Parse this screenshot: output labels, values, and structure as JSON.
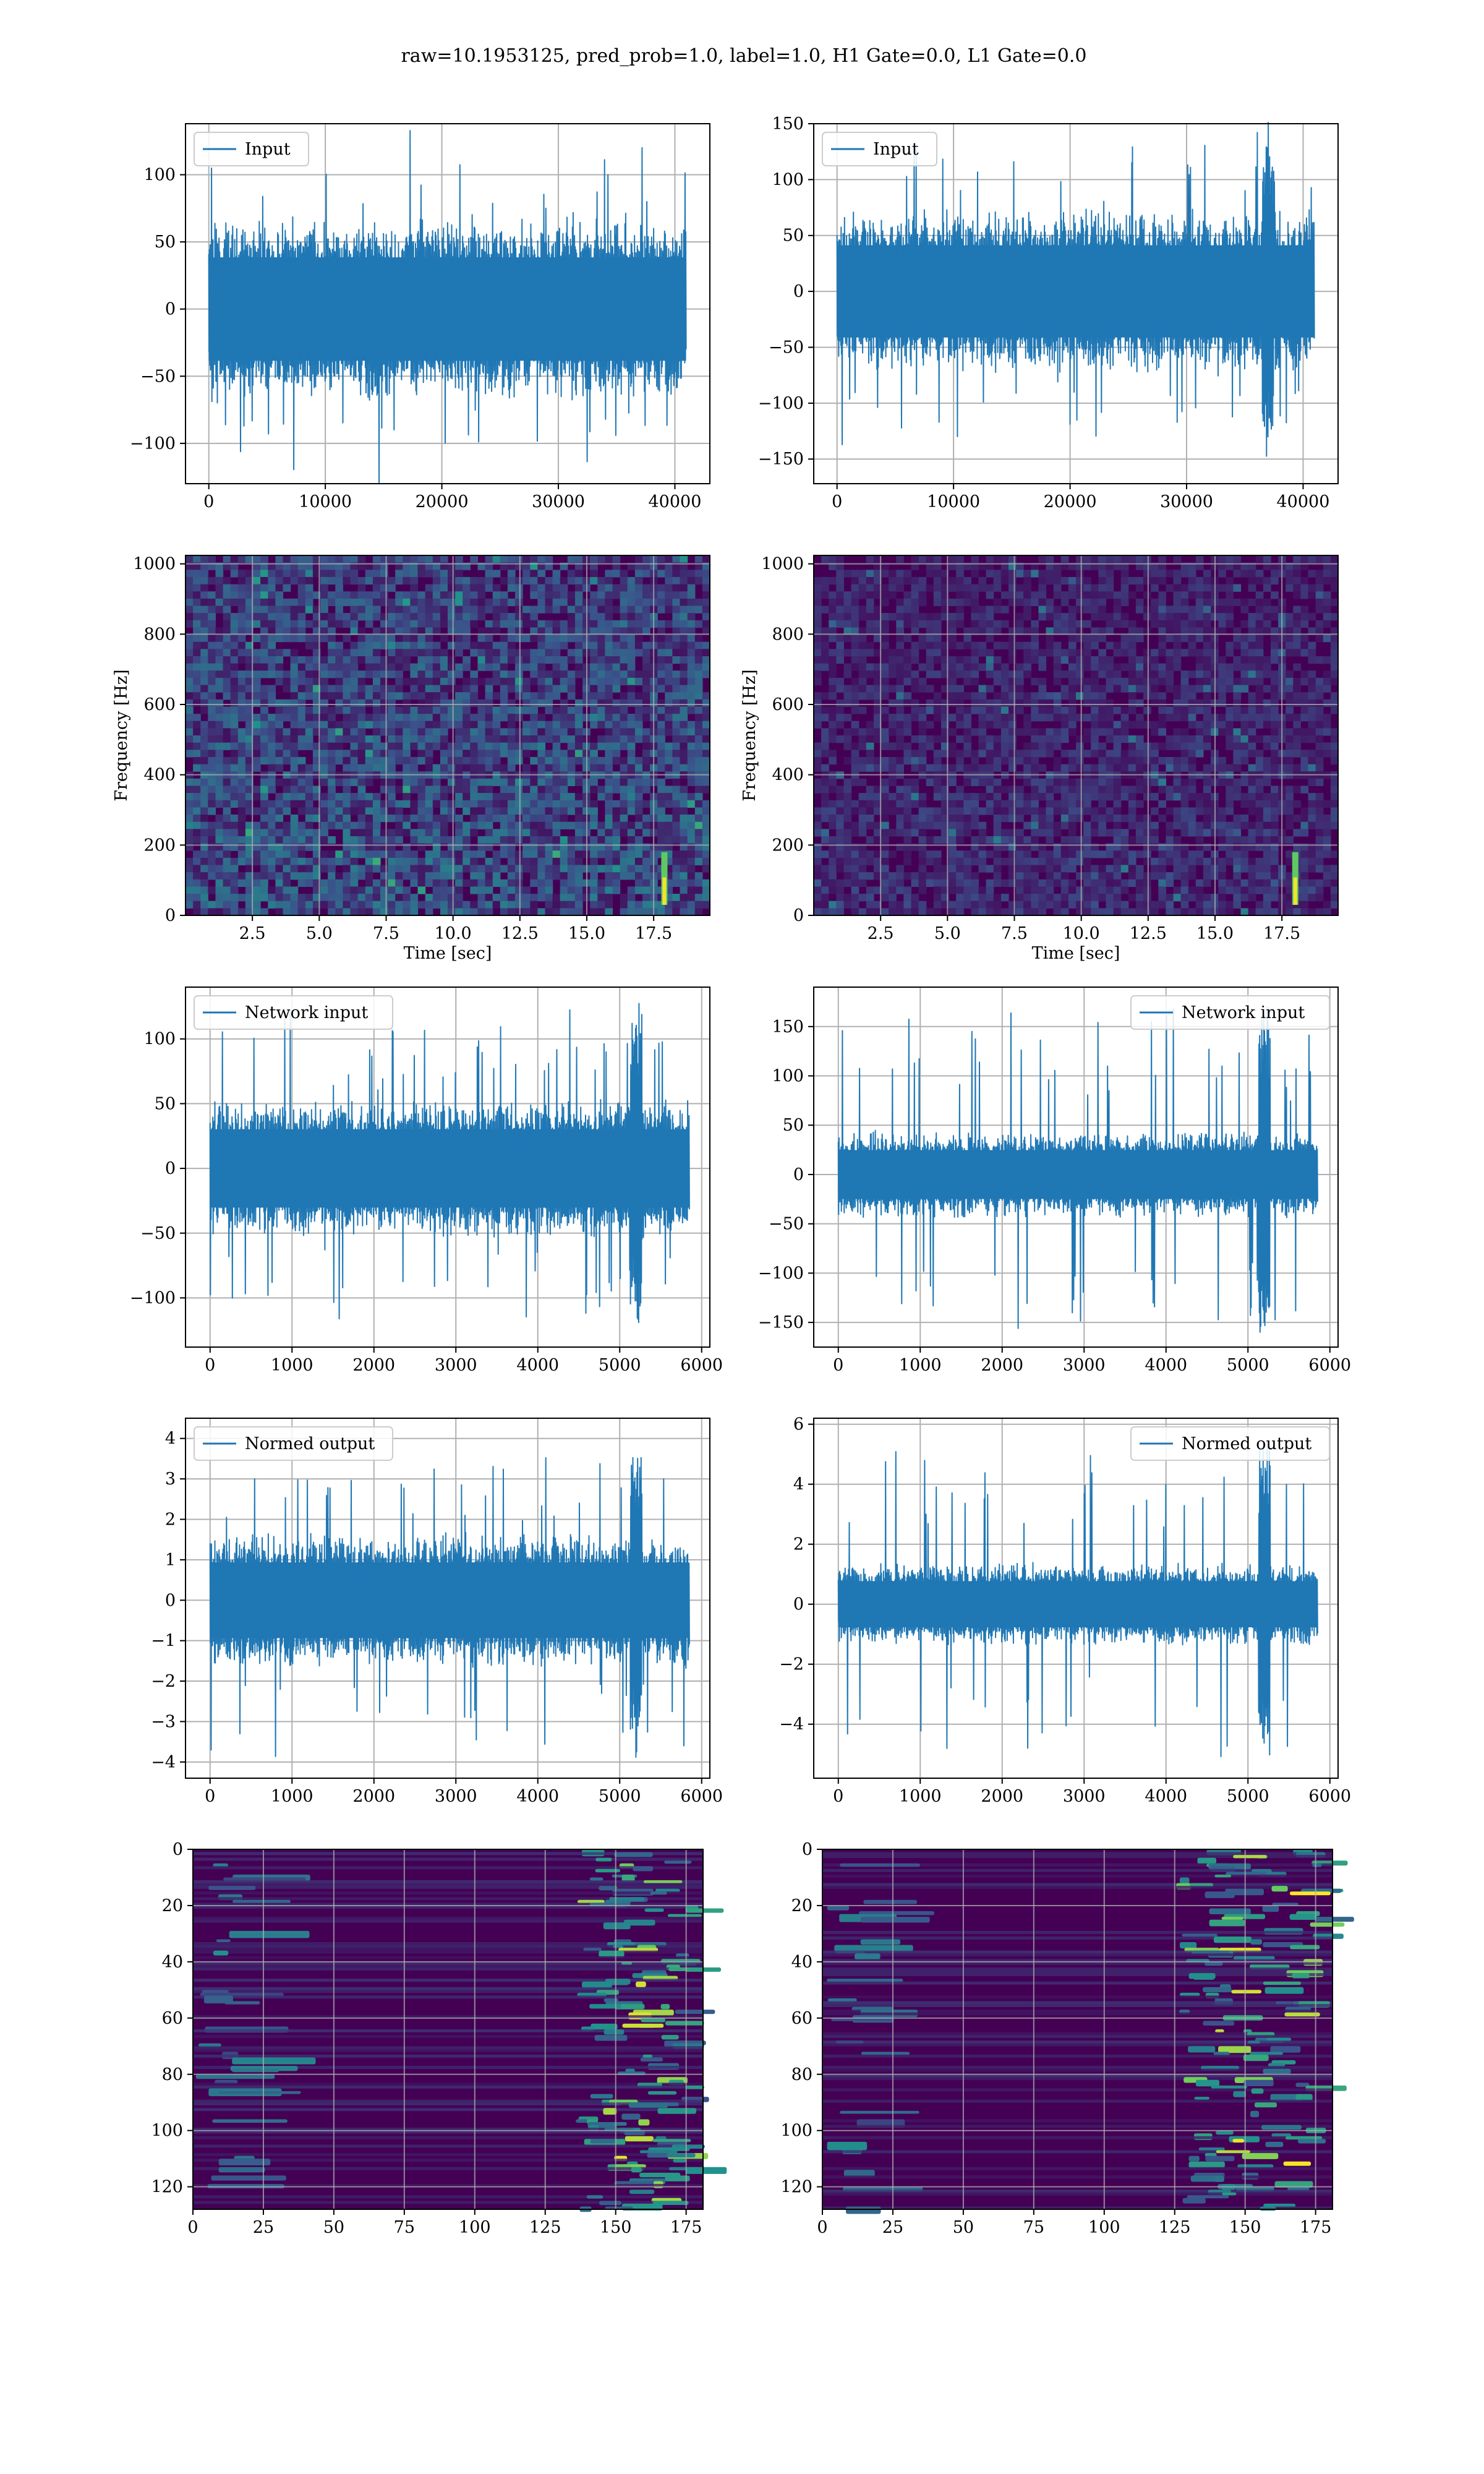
{
  "figure": {
    "title": "raw=10.1953125, pred_prob=1.0, label=1.0, H1 Gate=0.0, L1 Gate=0.0",
    "colors": {
      "line": "#1f77b4",
      "grid": "#b0b0b0",
      "viridis_low": "#440154",
      "viridis_mid": "#21918c",
      "viridis_high": "#fde725"
    }
  },
  "chart_data": [
    {
      "id": "h1-input",
      "type": "line",
      "title": "",
      "series": [
        {
          "name": "Input"
        }
      ],
      "legend": "top-left",
      "xlim": [
        -2000,
        43000
      ],
      "ylim": [
        -130,
        138
      ],
      "xticks": [
        0,
        10000,
        20000,
        30000,
        40000
      ],
      "xtick_labels": [
        "0",
        "10000",
        "20000",
        "30000",
        "40000"
      ],
      "yticks": [
        -100,
        -50,
        0,
        50,
        100
      ],
      "ytick_labels": [
        "−100",
        "−50",
        "0",
        "50",
        "100"
      ],
      "xlabel": "",
      "ylabel": "",
      "grid": true,
      "signal": {
        "x_range": [
          0,
          40960
        ],
        "amplitude": 70,
        "peak": 135,
        "burst_at": null
      }
    },
    {
      "id": "l1-input",
      "type": "line",
      "title": "",
      "series": [
        {
          "name": "Input"
        }
      ],
      "legend": "top-left",
      "xlim": [
        -2000,
        43000
      ],
      "ylim": [
        -172,
        150
      ],
      "xticks": [
        0,
        10000,
        20000,
        30000,
        40000
      ],
      "xtick_labels": [
        "0",
        "10000",
        "20000",
        "30000",
        "40000"
      ],
      "yticks": [
        -150,
        -100,
        -50,
        0,
        50,
        100,
        150
      ],
      "ytick_labels": [
        "−150",
        "−100",
        "−50",
        "0",
        "50",
        "100",
        "150"
      ],
      "xlabel": "",
      "ylabel": "",
      "grid": true,
      "signal": {
        "x_range": [
          0,
          40960
        ],
        "amplitude": 75,
        "peak": 160,
        "burst_at": 37000
      }
    },
    {
      "id": "h1-spectrogram",
      "type": "heatmap",
      "title": "",
      "xlim": [
        0.0,
        19.6
      ],
      "ylim": [
        0,
        1024
      ],
      "xticks": [
        2.5,
        5.0,
        7.5,
        10.0,
        12.5,
        15.0,
        17.5
      ],
      "xtick_labels": [
        "2.5",
        "5.0",
        "7.5",
        "10.0",
        "12.5",
        "15.0",
        "17.5"
      ],
      "yticks": [
        0,
        200,
        400,
        600,
        800,
        1000
      ],
      "ytick_labels": [
        "0",
        "200",
        "400",
        "600",
        "800",
        "1000"
      ],
      "xlabel": "Time [sec]",
      "ylabel": "Frequency [Hz]",
      "grid": true,
      "colormap": "viridis",
      "brightness": 0.55,
      "hot_spot": {
        "t": 17.9,
        "f": [
          30,
          180
        ]
      }
    },
    {
      "id": "l1-spectrogram",
      "type": "heatmap",
      "title": "",
      "xlim": [
        0.0,
        19.6
      ],
      "ylim": [
        0,
        1024
      ],
      "xticks": [
        2.5,
        5.0,
        7.5,
        10.0,
        12.5,
        15.0,
        17.5
      ],
      "xtick_labels": [
        "2.5",
        "5.0",
        "7.5",
        "10.0",
        "12.5",
        "15.0",
        "17.5"
      ],
      "yticks": [
        0,
        200,
        400,
        600,
        800,
        1000
      ],
      "ytick_labels": [
        "0",
        "200",
        "400",
        "600",
        "800",
        "1000"
      ],
      "xlabel": "Time [sec]",
      "ylabel": "Frequency [Hz]",
      "grid": true,
      "colormap": "viridis",
      "brightness": 0.3,
      "hot_spot": {
        "t": 18.0,
        "f": [
          30,
          180
        ]
      }
    },
    {
      "id": "h1-network-input",
      "type": "line",
      "title": "",
      "series": [
        {
          "name": "Network input"
        }
      ],
      "legend": "top-left",
      "xlim": [
        -300,
        6100
      ],
      "ylim": [
        -138,
        140
      ],
      "xticks": [
        0,
        1000,
        2000,
        3000,
        4000,
        5000,
        6000
      ],
      "xtick_labels": [
        "0",
        "1000",
        "2000",
        "3000",
        "4000",
        "5000",
        "6000"
      ],
      "yticks": [
        -100,
        -50,
        0,
        50,
        100
      ],
      "ytick_labels": [
        "−100",
        "−50",
        "0",
        "50",
        "100"
      ],
      "xlabel": "",
      "ylabel": "",
      "grid": true,
      "signal": {
        "x_range": [
          0,
          5850
        ],
        "amplitude": 55,
        "peak": 130,
        "burst_at": 5200
      }
    },
    {
      "id": "l1-network-input",
      "type": "line",
      "title": "",
      "series": [
        {
          "name": "Network input"
        }
      ],
      "legend": "top-right",
      "xlim": [
        -300,
        6100
      ],
      "ylim": [
        -175,
        190
      ],
      "xticks": [
        0,
        1000,
        2000,
        3000,
        4000,
        5000,
        6000
      ],
      "xtick_labels": [
        "0",
        "1000",
        "2000",
        "3000",
        "4000",
        "5000",
        "6000"
      ],
      "yticks": [
        -150,
        -100,
        -50,
        0,
        50,
        100,
        150
      ],
      "ytick_labels": [
        "−150",
        "−100",
        "−50",
        "0",
        "50",
        "100",
        "150"
      ],
      "xlabel": "",
      "ylabel": "",
      "grid": true,
      "signal": {
        "x_range": [
          0,
          5850
        ],
        "amplitude": 45,
        "peak": 175,
        "burst_at": 5200
      }
    },
    {
      "id": "h1-normed-output",
      "type": "line",
      "title": "",
      "series": [
        {
          "name": "Normed output"
        }
      ],
      "legend": "top-left",
      "xlim": [
        -300,
        6100
      ],
      "ylim": [
        -4.4,
        4.5
      ],
      "xticks": [
        0,
        1000,
        2000,
        3000,
        4000,
        5000,
        6000
      ],
      "xtick_labels": [
        "0",
        "1000",
        "2000",
        "3000",
        "4000",
        "5000",
        "6000"
      ],
      "yticks": [
        -4,
        -3,
        -2,
        -1,
        0,
        1,
        2,
        3,
        4
      ],
      "ytick_labels": [
        "−4",
        "−3",
        "−2",
        "−1",
        "0",
        "1",
        "2",
        "3",
        "4"
      ],
      "xlabel": "",
      "ylabel": "",
      "grid": true,
      "signal": {
        "x_range": [
          0,
          5850
        ],
        "amplitude": 1.7,
        "peak": 4.1,
        "burst_at": 5200
      }
    },
    {
      "id": "l1-normed-output",
      "type": "line",
      "title": "",
      "series": [
        {
          "name": "Normed output"
        }
      ],
      "legend": "top-right",
      "xlim": [
        -300,
        6100
      ],
      "ylim": [
        -5.8,
        6.2
      ],
      "xticks": [
        0,
        1000,
        2000,
        3000,
        4000,
        5000,
        6000
      ],
      "xtick_labels": [
        "0",
        "1000",
        "2000",
        "3000",
        "4000",
        "5000",
        "6000"
      ],
      "yticks": [
        -4,
        -2,
        0,
        2,
        4,
        6
      ],
      "ytick_labels": [
        "−4",
        "−2",
        "0",
        "2",
        "4",
        "6"
      ],
      "xlabel": "",
      "ylabel": "",
      "grid": true,
      "signal": {
        "x_range": [
          0,
          5850
        ],
        "amplitude": 1.4,
        "peak": 5.6,
        "burst_at": 5200
      }
    },
    {
      "id": "h1-feature-map",
      "type": "heatmap",
      "title": "",
      "xlim": [
        0,
        181
      ],
      "ylim": [
        128,
        0
      ],
      "xticks": [
        0,
        25,
        50,
        75,
        100,
        125,
        150,
        175
      ],
      "xtick_labels": [
        "0",
        "25",
        "50",
        "75",
        "100",
        "125",
        "150",
        "175"
      ],
      "yticks": [
        0,
        20,
        40,
        60,
        80,
        100,
        120
      ],
      "ytick_labels": [
        "0",
        "20",
        "40",
        "60",
        "80",
        "100",
        "120"
      ],
      "xlabel": "",
      "ylabel": "",
      "grid": true,
      "colormap": "viridis",
      "active_from": 135
    },
    {
      "id": "l1-feature-map",
      "type": "heatmap",
      "title": "",
      "xlim": [
        0,
        181
      ],
      "ylim": [
        128,
        0
      ],
      "xticks": [
        0,
        25,
        50,
        75,
        100,
        125,
        150,
        175
      ],
      "xtick_labels": [
        "0",
        "25",
        "50",
        "75",
        "100",
        "125",
        "150",
        "175"
      ],
      "yticks": [
        0,
        20,
        40,
        60,
        80,
        100,
        120
      ],
      "ytick_labels": [
        "0",
        "20",
        "40",
        "60",
        "80",
        "100",
        "120"
      ],
      "xlabel": "",
      "ylabel": "",
      "grid": true,
      "colormap": "viridis",
      "active_from": 125
    }
  ]
}
